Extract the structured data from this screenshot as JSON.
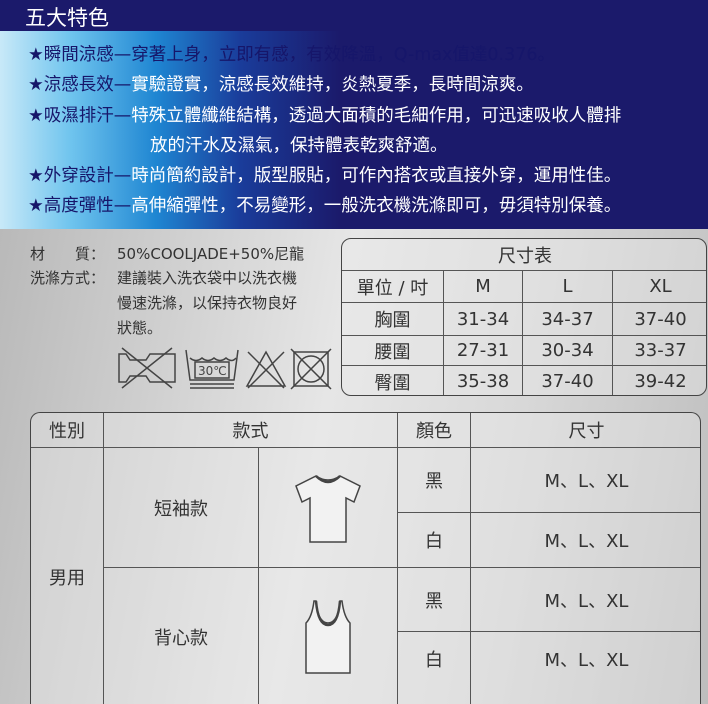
{
  "header": {
    "title": "五大特色"
  },
  "features": [
    {
      "head": "★瞬間涼感—",
      "text": "穿著上身，立即有感，有效降溫，Q-max值達0.376。"
    },
    {
      "head": "★涼感長效—",
      "text": "實驗證實，涼感長效維持，炎熱夏季，長時間涼爽。"
    },
    {
      "head": "★吸濕排汗—",
      "text": "特殊立體纖維結構，透過大面積的毛細作用，可迅速吸收人體排",
      "cont": "放的汗水及濕氣，保持體表乾爽舒適。"
    },
    {
      "head": "★外穿設計—",
      "text": "時尚簡約設計，版型服貼，可作內搭衣或直接外穿，運用性佳。"
    },
    {
      "head": "★高度彈性—",
      "text": "高伸縮彈性，不易變形，一般洗衣機洗滌即可，毋須特別保養。"
    }
  ],
  "material": {
    "label": "材　　質：",
    "value": "50%COOLJADE+50%尼龍"
  },
  "washing": {
    "label": "洗滌方式：",
    "lines": [
      "建議裝入洗衣袋中以洗衣機",
      "慢速洗滌，以保持衣物良好",
      "狀態。"
    ]
  },
  "care_icons": [
    "no-tumble-dry-icon",
    "wash-30c-icon",
    "no-bleach-icon",
    "no-dry-clean-icon"
  ],
  "care_temp": "30℃",
  "size_chart": {
    "title": "尺寸表",
    "headers": [
      "單位 / 吋",
      "M",
      "L",
      "XL"
    ],
    "rows": [
      [
        "胸圍",
        "31-34",
        "34-37",
        "37-40"
      ],
      [
        "腰圍",
        "27-31",
        "30-34",
        "33-37"
      ],
      [
        "臀圍",
        "35-38",
        "37-40",
        "39-42"
      ]
    ]
  },
  "style_table": {
    "headers": [
      "性別",
      "款式",
      "顏色",
      "尺寸"
    ],
    "gender": "男用",
    "styles": [
      {
        "name": "短袖款",
        "icon": "t-shirt-icon",
        "colors": [
          "黑",
          "白"
        ]
      },
      {
        "name": "背心款",
        "icon": "tank-top-icon",
        "colors": [
          "黑",
          "白"
        ]
      }
    ],
    "sizes": "M、L、XL"
  }
}
